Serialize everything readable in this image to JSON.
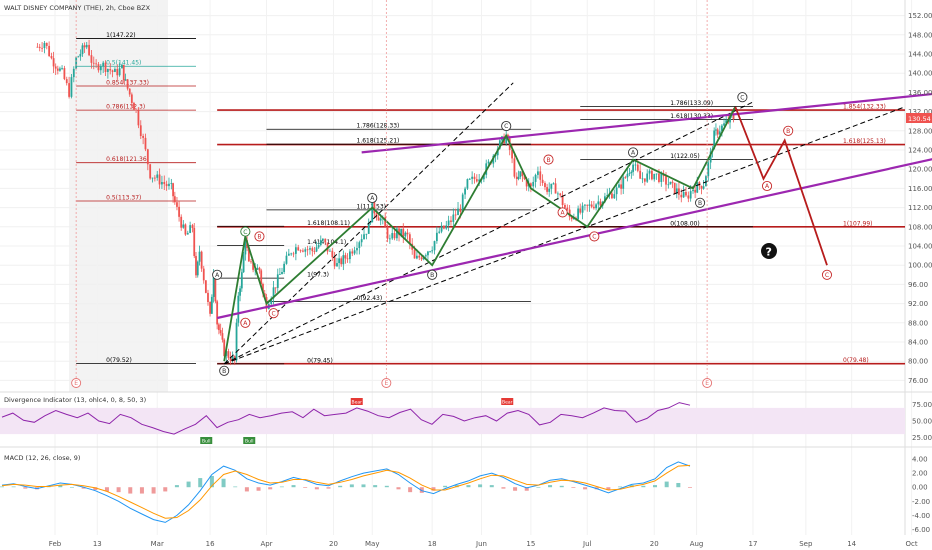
{
  "title": "WALT DISNEY COMPANY (THE), 2h, Cboe BZX",
  "price_tag": "130.54",
  "question_mark": "?",
  "colors": {
    "candle_up": "#26a69a",
    "candle_down": "#ef5350",
    "fib_red": "#b71c1c",
    "fib_black": "#000000",
    "channel": "#9c27b0",
    "wave_green": "#2e7d32",
    "wave_red": "#b71c1c",
    "divergence": "#8e24aa",
    "macd": "#2196f3",
    "signal": "#ff9800"
  },
  "chart_data": [
    {
      "type": "candlestick",
      "title": "WALT DISNEY COMPANY (THE), 2h, Cboe BZX",
      "ylim": [
        74,
        154
      ],
      "y_ticks": [
        "152.00",
        "148.00",
        "144.00",
        "140.00",
        "136.00",
        "132.00",
        "128.00",
        "124.00",
        "120.00",
        "116.00",
        "112.00",
        "108.00",
        "104.00",
        "100.00",
        "96.00",
        "92.00",
        "88.00",
        "84.00",
        "80.00",
        "76.00"
      ],
      "x_ticks": [
        "Feb",
        "13",
        "Mar",
        "16",
        "Apr",
        "20",
        "May",
        "18",
        "Jun",
        "15",
        "Jul",
        "20",
        "Aug",
        "17",
        "Sep",
        "14",
        "Oct"
      ],
      "close_path": [
        [
          "Jan 27",
          145.5
        ],
        [
          "Jan 29",
          146.5
        ],
        [
          "Jan 31",
          143
        ],
        [
          "Feb 3",
          140
        ],
        [
          "Feb 5",
          136
        ],
        [
          "Feb 7",
          143
        ],
        [
          "Feb 10",
          146
        ],
        [
          "Feb 12",
          141
        ],
        [
          "Feb 14",
          142
        ],
        [
          "Feb 18",
          140
        ],
        [
          "Feb 20",
          141
        ],
        [
          "Feb 21",
          138
        ],
        [
          "Feb 24",
          132
        ],
        [
          "Feb 26",
          126
        ],
        [
          "Feb 28",
          119
        ],
        [
          "Mar 3",
          117
        ],
        [
          "Mar 5",
          116
        ],
        [
          "Mar 6",
          113
        ],
        [
          "Mar 9",
          106
        ],
        [
          "Mar 11",
          108
        ],
        [
          "Mar 12",
          97
        ],
        [
          "Mar 13",
          103
        ],
        [
          "Mar 16",
          89
        ],
        [
          "Mar 17",
          99
        ],
        [
          "Mar 18",
          88
        ],
        [
          "Mar 19",
          85
        ],
        [
          "Mar 20",
          82
        ],
        [
          "Mar 23",
          80
        ],
        [
          "Mar 24",
          94
        ],
        [
          "Mar 25",
          98
        ],
        [
          "Mar 26",
          106
        ],
        [
          "Mar 27",
          100
        ],
        [
          "Mar 30",
          99
        ],
        [
          "Mar 31",
          94
        ],
        [
          "Apr 1",
          92
        ],
        [
          "Apr 3",
          95
        ],
        [
          "Apr 6",
          100
        ],
        [
          "Apr 8",
          103
        ],
        [
          "Apr 10",
          104
        ],
        [
          "Apr 14",
          103
        ],
        [
          "Apr 17",
          105
        ],
        [
          "Apr 21",
          100
        ],
        [
          "Apr 24",
          102
        ],
        [
          "Apr 28",
          106
        ],
        [
          "Apr 30",
          108
        ],
        [
          "May 1",
          112
        ],
        [
          "May 4",
          109
        ],
        [
          "May 6",
          105
        ],
        [
          "May 8",
          107
        ],
        [
          "May 11",
          106
        ],
        [
          "May 13",
          101
        ],
        [
          "May 15",
          102
        ],
        [
          "May 18",
          104
        ],
        [
          "May 20",
          107
        ],
        [
          "May 22",
          108
        ],
        [
          "May 26",
          112
        ],
        [
          "May 28",
          117
        ],
        [
          "Jun 1",
          119
        ],
        [
          "Jun 3",
          121
        ],
        [
          "Jun 5",
          124
        ],
        [
          "Jun 8",
          127
        ],
        [
          "Jun 9",
          124
        ],
        [
          "Jun 11",
          117
        ],
        [
          "Jun 12",
          119
        ],
        [
          "Jun 15",
          116
        ],
        [
          "Jun 17",
          120
        ],
        [
          "Jun 19",
          116
        ],
        [
          "Jun 22",
          116
        ],
        [
          "Jun 24",
          113
        ],
        [
          "Jun 26",
          110
        ],
        [
          "Jun 29",
          111
        ],
        [
          "Jul 1",
          112
        ],
        [
          "Jul 6",
          114
        ],
        [
          "Jul 8",
          115
        ],
        [
          "Jul 10",
          116
        ],
        [
          "Jul 13",
          120
        ],
        [
          "Jul 14",
          121
        ],
        [
          "Jul 16",
          118
        ],
        [
          "Jul 20",
          119
        ],
        [
          "Jul 22",
          118
        ],
        [
          "Jul 24",
          117
        ],
        [
          "Jul 27",
          115
        ],
        [
          "Jul 29",
          114
        ],
        [
          "Jul 31",
          116
        ],
        [
          "Aug 3",
          117
        ],
        [
          "Aug 5",
          123
        ],
        [
          "Aug 6",
          127
        ],
        [
          "Aug 7",
          128
        ],
        [
          "Aug 10",
          130
        ],
        [
          "Aug 11",
          131
        ],
        [
          "Aug 12",
          130.5
        ]
      ],
      "horizontal_levels": [
        {
          "label": "1.854(132.33)",
          "value": 132.33,
          "color": "red",
          "from": "Mar 18",
          "to": "Oct 31"
        },
        {
          "label": "1.618(125.13)",
          "value": 125.13,
          "color": "red",
          "from": "Mar 18",
          "to": "Oct 31"
        },
        {
          "label": "1(107.99)",
          "value": 107.99,
          "color": "red",
          "from": "Mar 18",
          "to": "Oct 31"
        },
        {
          "label": "0(79.48)",
          "value": 79.48,
          "color": "red",
          "from": "Mar 18",
          "to": "Oct 31"
        },
        {
          "label": "1(147.22)",
          "value": 147.22,
          "color": "black",
          "from": "Feb 7",
          "to": "Mar 12"
        },
        {
          "label": "0.5(141.45)",
          "value": 141.45,
          "color": "teal",
          "from": "Feb 7",
          "to": "Mar 12"
        },
        {
          "label": "0.854(137.33)",
          "value": 137.33,
          "color": "red",
          "from": "Feb 7",
          "to": "Mar 12"
        },
        {
          "label": "0.786(132.3)",
          "value": 132.3,
          "color": "red",
          "from": "Feb 7",
          "to": "Mar 12"
        },
        {
          "label": "0.618(121.36)",
          "value": 121.36,
          "color": "red",
          "from": "Feb 7",
          "to": "Mar 12"
        },
        {
          "label": "0.5(113.37)",
          "value": 113.37,
          "color": "red",
          "from": "Feb 7",
          "to": "Mar 12"
        },
        {
          "label": "0(79.52)",
          "value": 79.52,
          "color": "black",
          "from": "Feb 7",
          "to": "Mar 12"
        },
        {
          "label": "1.786(128.33)",
          "value": 128.33,
          "color": "black",
          "from": "Apr 1",
          "to": "Jun 15"
        },
        {
          "label": "1.618(125.21)",
          "value": 125.21,
          "color": "black",
          "from": "Apr 1",
          "to": "Jun 15"
        },
        {
          "label": "1(111.53)",
          "value": 111.53,
          "color": "black",
          "from": "Apr 1",
          "to": "Jun 15"
        },
        {
          "label": "0(92.43)",
          "value": 92.43,
          "color": "black",
          "from": "Apr 1",
          "to": "Jun 15"
        },
        {
          "label": "1.618(108.11)",
          "value": 108.11,
          "color": "black",
          "from": "Mar 18",
          "to": "Apr 6"
        },
        {
          "label": "1.414(104.1)",
          "value": 104.1,
          "color": "black",
          "from": "Mar 18",
          "to": "Apr 6"
        },
        {
          "label": "1(97.3)",
          "value": 97.3,
          "color": "black",
          "from": "Mar 18",
          "to": "Apr 6"
        },
        {
          "label": "0(79.45)",
          "value": 79.45,
          "color": "black",
          "from": "Mar 18",
          "to": "Apr 6"
        },
        {
          "label": "1.786(133.09)",
          "value": 133.09,
          "color": "black",
          "from": "Jun 29",
          "to": "Aug 17"
        },
        {
          "label": "1.618(130.33)",
          "value": 130.33,
          "color": "black",
          "from": "Jun 29",
          "to": "Aug 17"
        },
        {
          "label": "1(122.05)",
          "value": 122.05,
          "color": "black",
          "from": "Jun 29",
          "to": "Aug 17"
        },
        {
          "label": "0(108.00)",
          "value": 108.0,
          "color": "black",
          "from": "Jun 29",
          "to": "Aug 17"
        }
      ],
      "channel_lines": [
        {
          "from": [
            "Mar 18",
            89
          ],
          "to": [
            "Oct 31",
            125
          ]
        },
        {
          "from": [
            "Apr 28",
            123.5
          ],
          "to": [
            "Oct 31",
            137
          ]
        }
      ],
      "dashed_lines": [
        {
          "from": [
            "Mar 20",
            79.45
          ],
          "to": [
            "Jun 10",
            138
          ]
        },
        {
          "from": [
            "Mar 20",
            79.45
          ],
          "to": [
            "Aug 17",
            134
          ]
        },
        {
          "from": [
            "Mar 20",
            79.45
          ],
          "to": [
            "Oct 31",
            133
          ]
        }
      ],
      "green_waves": [
        [
          "Mar 20",
          80
        ],
        [
          "Mar 26",
          106
        ],
        [
          "Apr 1",
          92
        ],
        [
          "May 1",
          112
        ],
        [
          "May 18",
          100
        ],
        [
          "Jun 8",
          127
        ],
        [
          "Jun 15",
          116
        ],
        [
          "Jul 1",
          108
        ],
        [
          "Jul 14",
          122
        ],
        [
          "Jul 31",
          116
        ],
        [
          "Aug 12",
          133
        ]
      ],
      "red_projection": [
        [
          "Aug 12",
          133
        ],
        [
          "Aug 20",
          118
        ],
        [
          "Aug 26",
          126
        ],
        [
          "Sep 7",
          100
        ]
      ],
      "wave_labels": [
        {
          "text": "A",
          "at": [
            "Mar 18",
            98
          ],
          "color": "black"
        },
        {
          "text": "B",
          "at": [
            "Mar 20",
            78
          ],
          "color": "black"
        },
        {
          "text": "C",
          "at": [
            "Mar 26",
            107
          ],
          "color": "green"
        },
        {
          "text": "B",
          "at": [
            "Mar 30",
            106
          ],
          "color": "red"
        },
        {
          "text": "A",
          "at": [
            "Mar 26",
            88
          ],
          "color": "red"
        },
        {
          "text": "C",
          "at": [
            "Apr 3",
            90
          ],
          "color": "red"
        },
        {
          "text": "A",
          "at": [
            "May 1",
            114
          ],
          "color": "black"
        },
        {
          "text": "B",
          "at": [
            "May 18",
            98
          ],
          "color": "black"
        },
        {
          "text": "C",
          "at": [
            "Jun 8",
            129
          ],
          "color": "black"
        },
        {
          "text": "B",
          "at": [
            "Jun 20",
            122
          ],
          "color": "red"
        },
        {
          "text": "A",
          "at": [
            "Jun 24",
            111
          ],
          "color": "red"
        },
        {
          "text": "C",
          "at": [
            "Jul 3",
            106
          ],
          "color": "red"
        },
        {
          "text": "A",
          "at": [
            "Jul 14",
            123.5
          ],
          "color": "black"
        },
        {
          "text": "B",
          "at": [
            "Aug 2",
            113
          ],
          "color": "black"
        },
        {
          "text": "C",
          "at": [
            "Aug 14",
            135
          ],
          "color": "black"
        },
        {
          "text": "B",
          "at": [
            "Aug 27",
            128
          ],
          "color": "red"
        },
        {
          "text": "A",
          "at": [
            "Aug 21",
            116.5
          ],
          "color": "red"
        },
        {
          "text": "C",
          "at": [
            "Sep 7",
            98
          ],
          "color": "red"
        }
      ],
      "event_markers": [
        {
          "text": "E",
          "at": "Feb 7"
        },
        {
          "text": "E",
          "at": "May 5"
        },
        {
          "text": "E",
          "at": "Aug 4"
        }
      ]
    },
    {
      "type": "line",
      "title": "Divergence Indicator (13, ohlc4, 0, 8, 50, 3)",
      "ylim": [
        15,
        85
      ],
      "y_ticks": [
        "75.00",
        "50.00",
        "25.00"
      ],
      "band": [
        30,
        70
      ],
      "values": [
        56,
        62,
        51,
        48,
        58,
        66,
        60,
        55,
        62,
        50,
        46,
        60,
        55,
        45,
        40,
        34,
        30,
        38,
        45,
        58,
        40,
        48,
        52,
        60,
        55,
        58,
        62,
        64,
        55,
        68,
        58,
        60,
        62,
        70,
        65,
        58,
        55,
        63,
        68,
        52,
        45,
        60,
        57,
        50,
        55,
        58,
        50,
        62,
        66,
        60,
        44,
        48,
        60,
        58,
        55,
        62,
        70,
        66,
        65,
        48,
        54,
        66,
        70,
        78,
        74
      ],
      "badges": [
        {
          "text": "Bear",
          "at_index": 33
        },
        {
          "text": "Bear",
          "at_index": 47
        },
        {
          "text": "Bull",
          "at_index": 19
        },
        {
          "text": "Bull",
          "at_index": 23
        }
      ]
    },
    {
      "type": "line",
      "title": "MACD (12, 26, close, 9)",
      "ylim": [
        -6.5,
        5
      ],
      "y_ticks": [
        "4.00",
        "2.00",
        "0.00",
        "-2.00",
        "-4.00",
        "-6.00"
      ],
      "macd": [
        0.3,
        0.5,
        0.1,
        -0.2,
        0.2,
        0.6,
        0.4,
        0.0,
        -0.5,
        -1.2,
        -2.0,
        -3.0,
        -3.8,
        -4.6,
        -5.0,
        -4.0,
        -2.5,
        -0.5,
        1.8,
        3.0,
        2.4,
        1.2,
        0.6,
        0.3,
        0.8,
        1.4,
        1.0,
        0.4,
        0.2,
        0.9,
        1.5,
        2.0,
        2.3,
        2.6,
        1.8,
        0.6,
        -0.5,
        -0.9,
        -0.2,
        0.4,
        0.9,
        1.6,
        2.0,
        1.4,
        0.5,
        -0.1,
        0.3,
        1.0,
        1.2,
        0.8,
        0.3,
        -0.2,
        -0.8,
        -0.2,
        0.4,
        0.6,
        1.2,
        2.8,
        3.6,
        3.0
      ],
      "signal": [
        0.2,
        0.4,
        0.3,
        0.1,
        0.1,
        0.3,
        0.4,
        0.2,
        -0.1,
        -0.6,
        -1.3,
        -2.1,
        -2.9,
        -3.7,
        -4.4,
        -4.3,
        -3.3,
        -1.8,
        0.2,
        1.8,
        2.3,
        1.8,
        1.1,
        0.6,
        0.7,
        1.1,
        1.1,
        0.7,
        0.4,
        0.7,
        1.1,
        1.6,
        2.0,
        2.4,
        2.1,
        1.3,
        0.3,
        -0.4,
        -0.4,
        0.1,
        0.6,
        1.2,
        1.7,
        1.6,
        1.0,
        0.4,
        0.3,
        0.7,
        1.0,
        0.9,
        0.6,
        0.1,
        -0.4,
        -0.3,
        0.1,
        0.4,
        0.9,
        2.0,
        3.0,
        3.1
      ]
    }
  ]
}
